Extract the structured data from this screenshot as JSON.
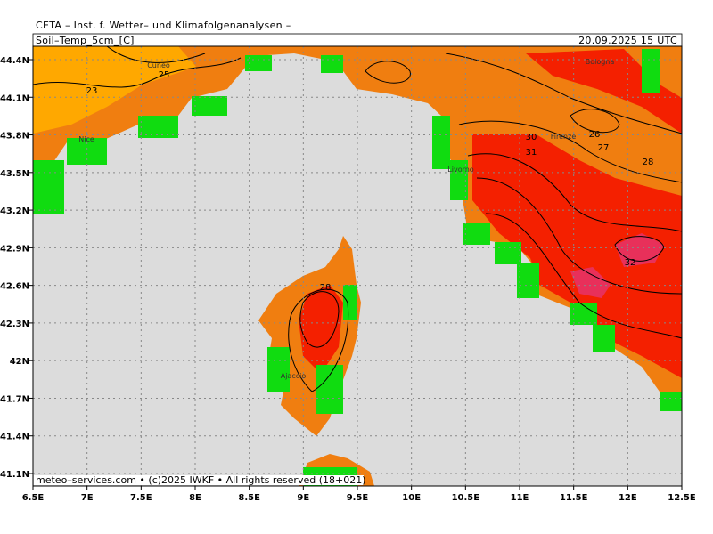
{
  "header": {
    "title": "CETA – Inst. f. Wetter– und Klimafolgenanalysen –",
    "variable": "Soil–Temp_5cm_[C]",
    "valid_time": "20.09.2025 15 UTC"
  },
  "map": {
    "lon_ticks": [
      {
        "value": 6.5,
        "label": "6.5E"
      },
      {
        "value": 7,
        "label": "7E"
      },
      {
        "value": 7.5,
        "label": "7.5E"
      },
      {
        "value": 8,
        "label": "8E"
      },
      {
        "value": 8.5,
        "label": "8.5E"
      },
      {
        "value": 9,
        "label": "9E"
      },
      {
        "value": 9.5,
        "label": "9.5E"
      },
      {
        "value": 10,
        "label": "10E"
      },
      {
        "value": 10.5,
        "label": "10.5E"
      },
      {
        "value": 11,
        "label": "11E"
      },
      {
        "value": 11.5,
        "label": "11.5E"
      },
      {
        "value": 12,
        "label": "12E"
      },
      {
        "value": 12.5,
        "label": "12.5E"
      }
    ],
    "lat_ticks": [
      {
        "value": 44.4,
        "label": "44.4N"
      },
      {
        "value": 44.1,
        "label": "44.1N"
      },
      {
        "value": 43.8,
        "label": "43.8N"
      },
      {
        "value": 43.5,
        "label": "43.5N"
      },
      {
        "value": 43.2,
        "label": "43.2N"
      },
      {
        "value": 42.9,
        "label": "42.9N"
      },
      {
        "value": 42.6,
        "label": "42.6N"
      },
      {
        "value": 42.3,
        "label": "42.3N"
      },
      {
        "value": 42,
        "label": "42N"
      },
      {
        "value": 41.7,
        "label": "41.7N"
      },
      {
        "value": 41.4,
        "label": "41.4N"
      },
      {
        "value": 41.1,
        "label": "41.1N"
      }
    ],
    "contour_labels": [
      23,
      25,
      30,
      31,
      26,
      27,
      28,
      32,
      28
    ],
    "places": [
      "Cuneo",
      "Nice",
      "Livorno",
      "Firenze",
      "Bologna",
      "Ajaccio"
    ]
  },
  "footer": "meteo–services.com • (c)2025 IWKF • All rights reserved (18+021)"
}
